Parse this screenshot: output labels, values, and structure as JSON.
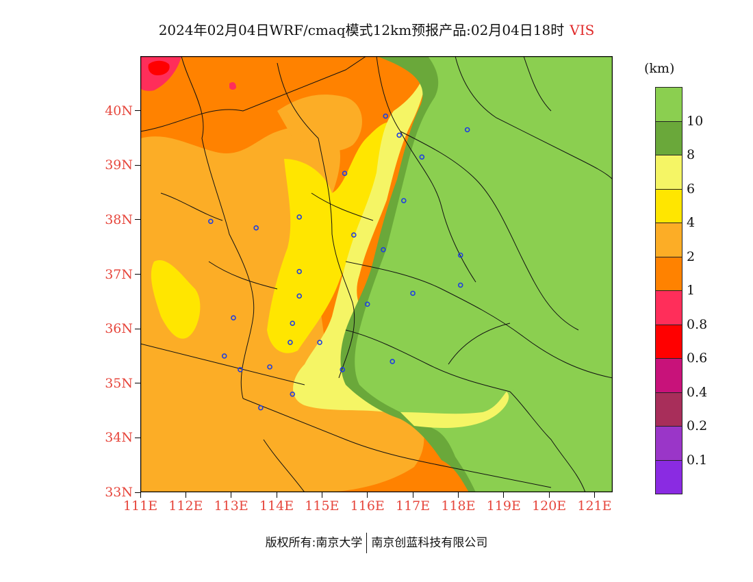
{
  "title": {
    "main": "2024年02月04日WRF/cmaq模式12km预报产品:02月04日18时",
    "variable": "VIS"
  },
  "map": {
    "lat_range": [
      33,
      41
    ],
    "lon_range": [
      111,
      121.4
    ],
    "lat_ticks": [
      "40N",
      "39N",
      "38N",
      "37N",
      "36N",
      "35N",
      "34N",
      "33N"
    ],
    "lon_ticks": [
      "111E",
      "112E",
      "113E",
      "114E",
      "115E",
      "116E",
      "117E",
      "118E",
      "119E",
      "120E",
      "121E"
    ],
    "tick_color": "#e6463c",
    "stations": [
      {
        "lon": 116.4,
        "lat": 39.9
      },
      {
        "lon": 116.7,
        "lat": 39.55
      },
      {
        "lon": 118.2,
        "lat": 39.65
      },
      {
        "lon": 117.2,
        "lat": 39.15
      },
      {
        "lon": 115.5,
        "lat": 38.85
      },
      {
        "lon": 116.8,
        "lat": 38.35
      },
      {
        "lon": 112.55,
        "lat": 37.97
      },
      {
        "lon": 113.55,
        "lat": 37.85
      },
      {
        "lon": 114.5,
        "lat": 38.05
      },
      {
        "lon": 115.7,
        "lat": 37.72
      },
      {
        "lon": 116.35,
        "lat": 37.45
      },
      {
        "lon": 118.05,
        "lat": 37.35
      },
      {
        "lon": 118.05,
        "lat": 36.8
      },
      {
        "lon": 114.5,
        "lat": 37.05
      },
      {
        "lon": 114.5,
        "lat": 36.6
      },
      {
        "lon": 117.0,
        "lat": 36.65
      },
      {
        "lon": 116.0,
        "lat": 36.45
      },
      {
        "lon": 113.05,
        "lat": 36.2
      },
      {
        "lon": 114.35,
        "lat": 36.1
      },
      {
        "lon": 114.3,
        "lat": 35.75
      },
      {
        "lon": 114.95,
        "lat": 35.75
      },
      {
        "lon": 112.85,
        "lat": 35.5
      },
      {
        "lon": 113.2,
        "lat": 35.25
      },
      {
        "lon": 113.85,
        "lat": 35.3
      },
      {
        "lon": 115.45,
        "lat": 35.25
      },
      {
        "lon": 116.55,
        "lat": 35.4
      },
      {
        "lon": 114.35,
        "lat": 34.8
      },
      {
        "lon": 113.65,
        "lat": 34.55
      }
    ]
  },
  "colorbar": {
    "unit": "(km)",
    "colors": [
      "#8bcf50",
      "#6aa83a",
      "#f5f565",
      "#ffe600",
      "#fcad26",
      "#ff8200",
      "#ff2e5a",
      "#ff0000",
      "#c8127a",
      "#a82e5a",
      "#9a36c8",
      "#8a2be2"
    ],
    "labels": [
      "10",
      "8",
      "6",
      "4",
      "2",
      "1",
      "0.8",
      "0.6",
      "0.4",
      "0.2",
      "0.1"
    ]
  },
  "footer": {
    "left": "版权所有:南京大学",
    "right": "南京创蓝科技有限公司"
  }
}
